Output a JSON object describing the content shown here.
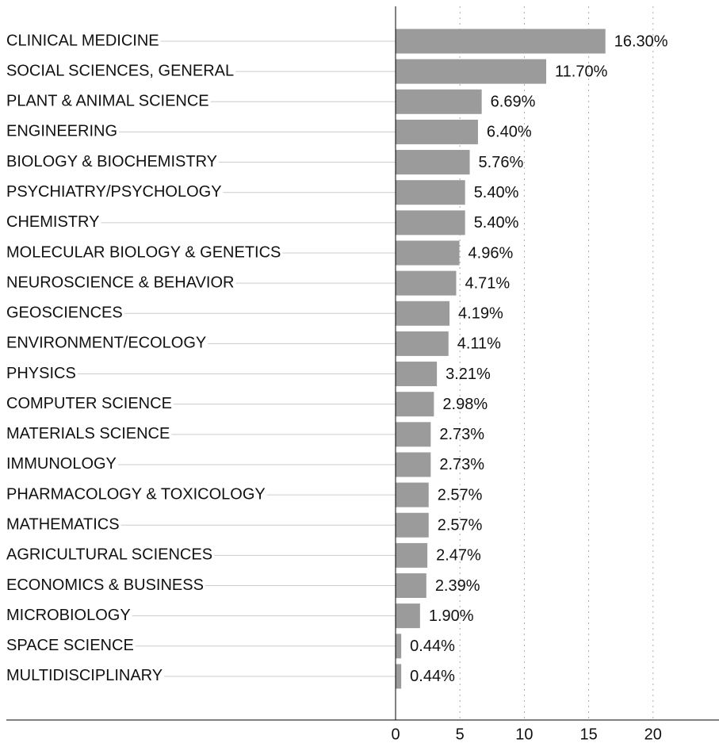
{
  "chart_data": {
    "type": "hbar",
    "categories": [
      "CLINICAL MEDICINE",
      "SOCIAL SCIENCES, GENERAL",
      "PLANT & ANIMAL SCIENCE",
      "ENGINEERING",
      "BIOLOGY & BIOCHEMISTRY",
      "PSYCHIATRY/PSYCHOLOGY",
      "CHEMISTRY",
      "MOLECULAR BIOLOGY & GENETICS",
      "NEUROSCIENCE & BEHAVIOR",
      "GEOSCIENCES",
      "ENVIRONMENT/ECOLOGY",
      "PHYSICS",
      "COMPUTER SCIENCE",
      "MATERIALS SCIENCE",
      "IMMUNOLOGY",
      "PHARMACOLOGY & TOXICOLOGY",
      "MATHEMATICS",
      "AGRICULTURAL SCIENCES",
      "ECONOMICS & BUSINESS",
      "MICROBIOLOGY",
      "SPACE SCIENCE",
      "MULTIDISCIPLINARY"
    ],
    "values": [
      16.3,
      11.7,
      6.69,
      6.4,
      5.76,
      5.4,
      5.4,
      4.96,
      4.71,
      4.19,
      4.11,
      3.21,
      2.98,
      2.73,
      2.73,
      2.57,
      2.57,
      2.47,
      2.39,
      1.9,
      0.44,
      0.44
    ],
    "value_labels": [
      "16.30%",
      "11.70%",
      "6.69%",
      "6.40%",
      "5.76%",
      "5.40%",
      "5.40%",
      "4.96%",
      "4.71%",
      "4.19%",
      "4.11%",
      "3.21%",
      "2.98%",
      "2.73%",
      "2.73%",
      "2.57%",
      "2.57%",
      "2.47%",
      "2.39%",
      "1.90%",
      "0.44%",
      "0.44%"
    ],
    "color": "#9b9b9b",
    "xlim": [
      0,
      25
    ],
    "xticks": [
      0,
      5,
      10,
      15,
      20
    ],
    "grid": true
  }
}
